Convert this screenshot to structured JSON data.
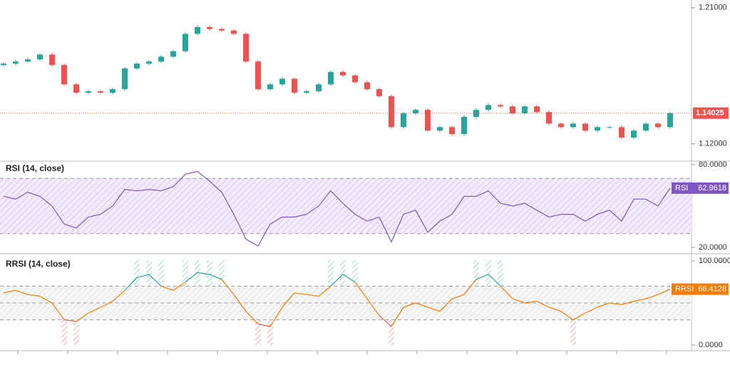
{
  "chart_data": [
    {
      "type": "candlestick",
      "open": [
        1.172,
        1.173,
        1.1744,
        1.1758,
        1.179,
        1.1721,
        1.1593,
        1.1538,
        1.1547,
        1.1538,
        1.1561,
        1.1698,
        1.173,
        1.1744,
        1.1776,
        1.1812,
        1.1927,
        1.1972,
        1.1959,
        1.1949,
        1.1927,
        1.1744,
        1.1561,
        1.1593,
        1.163,
        1.1538,
        1.1547,
        1.1593,
        1.1675,
        1.1652,
        1.1607,
        1.1561,
        1.1515,
        1.131,
        1.1401,
        1.1424,
        1.1287,
        1.131,
        1.1264,
        1.1378,
        1.1424,
        1.1456,
        1.1447,
        1.1401,
        1.1447,
        1.141,
        1.1333,
        1.131,
        1.1333,
        1.1287,
        1.131,
        1.131,
        1.1241,
        1.1287,
        1.1333,
        1.131
      ],
      "high": [
        1.174,
        1.1754,
        1.1768,
        1.18,
        1.18,
        1.1731,
        1.1603,
        1.1557,
        1.1557,
        1.1571,
        1.1708,
        1.174,
        1.1754,
        1.1786,
        1.1822,
        1.1937,
        1.1982,
        1.1982,
        1.1969,
        1.1959,
        1.1937,
        1.1754,
        1.1603,
        1.164,
        1.164,
        1.1557,
        1.1603,
        1.1685,
        1.1685,
        1.1662,
        1.1617,
        1.1571,
        1.1525,
        1.1411,
        1.1434,
        1.1434,
        1.132,
        1.132,
        1.1388,
        1.1434,
        1.1466,
        1.1466,
        1.1457,
        1.1457,
        1.1457,
        1.142,
        1.1343,
        1.1343,
        1.1343,
        1.132,
        1.132,
        1.132,
        1.1297,
        1.1343,
        1.1343,
        1.1413
      ],
      "low": [
        1.171,
        1.172,
        1.1734,
        1.1748,
        1.1711,
        1.1583,
        1.1528,
        1.1528,
        1.1528,
        1.1528,
        1.1551,
        1.1688,
        1.172,
        1.1734,
        1.1766,
        1.1802,
        1.1917,
        1.1949,
        1.1939,
        1.1917,
        1.1734,
        1.1551,
        1.1551,
        1.1583,
        1.1528,
        1.1528,
        1.1537,
        1.1583,
        1.1642,
        1.1597,
        1.1551,
        1.1505,
        1.13,
        1.13,
        1.1391,
        1.1277,
        1.1277,
        1.1254,
        1.1254,
        1.1368,
        1.1414,
        1.1437,
        1.1391,
        1.1391,
        1.14,
        1.1323,
        1.13,
        1.13,
        1.1277,
        1.1277,
        1.13,
        1.1231,
        1.1231,
        1.1277,
        1.13,
        1.13
      ],
      "close": [
        1.173,
        1.1744,
        1.1758,
        1.179,
        1.1721,
        1.1593,
        1.1538,
        1.1547,
        1.1538,
        1.1561,
        1.1698,
        1.173,
        1.1744,
        1.1776,
        1.1812,
        1.1927,
        1.1972,
        1.1959,
        1.1949,
        1.1927,
        1.1744,
        1.1561,
        1.1593,
        1.163,
        1.1538,
        1.1547,
        1.1593,
        1.1675,
        1.1652,
        1.1607,
        1.1561,
        1.1515,
        1.131,
        1.1401,
        1.1424,
        1.1287,
        1.131,
        1.1264,
        1.1378,
        1.1424,
        1.1456,
        1.1447,
        1.1401,
        1.1447,
        1.141,
        1.1333,
        1.131,
        1.1333,
        1.1287,
        1.131,
        1.131,
        1.1241,
        1.1287,
        1.1333,
        1.131,
        1.14025
      ],
      "up_color": "#26a69a",
      "down_color": "#ef5350",
      "ylim": [
        1.1104,
        1.2132
      ],
      "yticks": [
        {
          "value": 1.21,
          "label": "1.21000"
        },
        {
          "value": 1.12,
          "label": "1.12000"
        }
      ]
    },
    {
      "type": "line",
      "title": "RSI (14, close)",
      "series": [
        {
          "name": "RSI",
          "color": "#7e57c2",
          "values": [
            57,
            55,
            60,
            57,
            50,
            37,
            34,
            42,
            44,
            50,
            62,
            61,
            62,
            61,
            64,
            73,
            75,
            68,
            60,
            44,
            26,
            21,
            37,
            42,
            42,
            44,
            50,
            61,
            52,
            44,
            39,
            42,
            24,
            44,
            47,
            31,
            39,
            44,
            57,
            57,
            61,
            52,
            50,
            52,
            47,
            42,
            44,
            44,
            39,
            44,
            47,
            39,
            55,
            55,
            50,
            62.9618
          ]
        }
      ],
      "ylim": [
        15.9,
        81.5
      ],
      "yticks": [
        {
          "value": 80,
          "label": "80.0000"
        },
        {
          "value": 20,
          "label": "20.0000"
        }
      ],
      "levels": [
        70,
        30
      ]
    },
    {
      "type": "line",
      "title": "RRSI (14, close)",
      "series": [
        {
          "name": "RRSI",
          "color": "#f57c00",
          "values": [
            62,
            65,
            60,
            58,
            50,
            30,
            28,
            38,
            45,
            52,
            65,
            80,
            84,
            70,
            65,
            75,
            86,
            84,
            78,
            60,
            40,
            25,
            22,
            45,
            62,
            60,
            58,
            70,
            84,
            75,
            55,
            35,
            22,
            45,
            50,
            45,
            40,
            55,
            60,
            78,
            84,
            70,
            55,
            50,
            52,
            45,
            40,
            30,
            38,
            45,
            50,
            48,
            52,
            55,
            60,
            66.4128
          ]
        }
      ],
      "ylim": [
        -6.8,
        107.6
      ],
      "yticks": [
        {
          "value": 100,
          "label": "100.0000"
        },
        {
          "value": 0,
          "label": "0.0000"
        }
      ],
      "levels": [
        70,
        50,
        30
      ],
      "high_color": "#26a69a",
      "low_color": "#ef5350"
    }
  ]
}
